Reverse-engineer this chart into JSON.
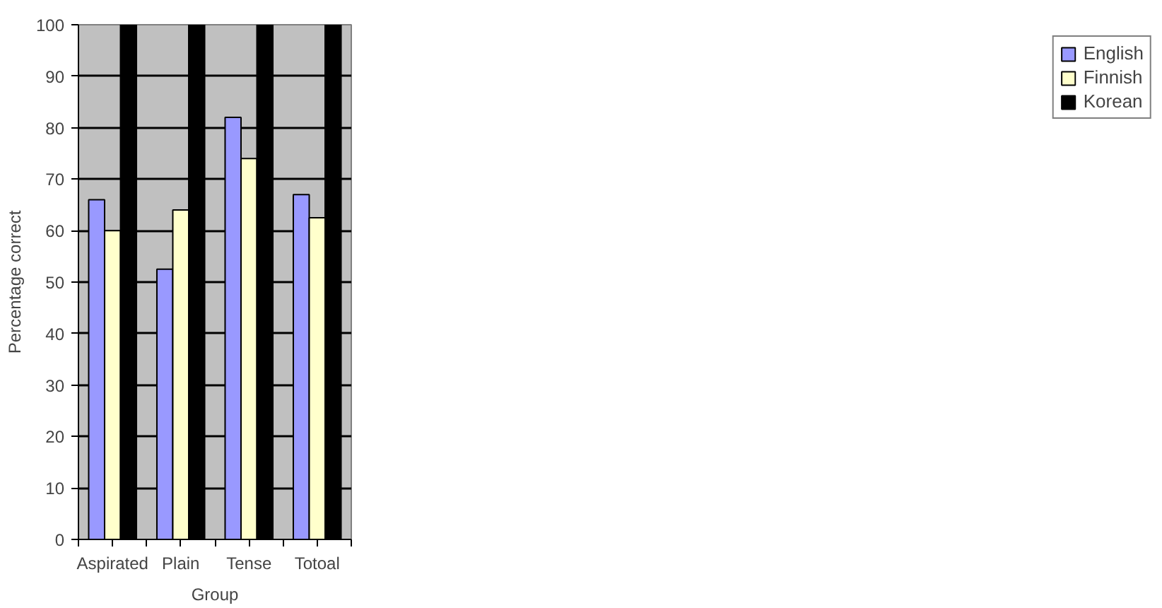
{
  "chart_data": {
    "type": "bar",
    "xlabel": "Group",
    "ylabel": "Percentage correct",
    "categories": [
      "Aspirated",
      "Plain",
      "Tense",
      "Totoal"
    ],
    "series": [
      {
        "name": "English",
        "color": "#9999ff",
        "values": [
          66,
          52.5,
          82,
          67
        ]
      },
      {
        "name": "Finnish",
        "color": "#ffffcc",
        "values": [
          60,
          64,
          74,
          62.5
        ]
      },
      {
        "name": "Korean",
        "color": "#000000",
        "values": [
          100,
          100,
          100,
          100
        ]
      }
    ],
    "ylim": [
      0,
      100
    ],
    "yticks": [
      0,
      10,
      20,
      30,
      40,
      50,
      60,
      70,
      80,
      90,
      100
    ],
    "grid": "y",
    "legend": "right"
  }
}
